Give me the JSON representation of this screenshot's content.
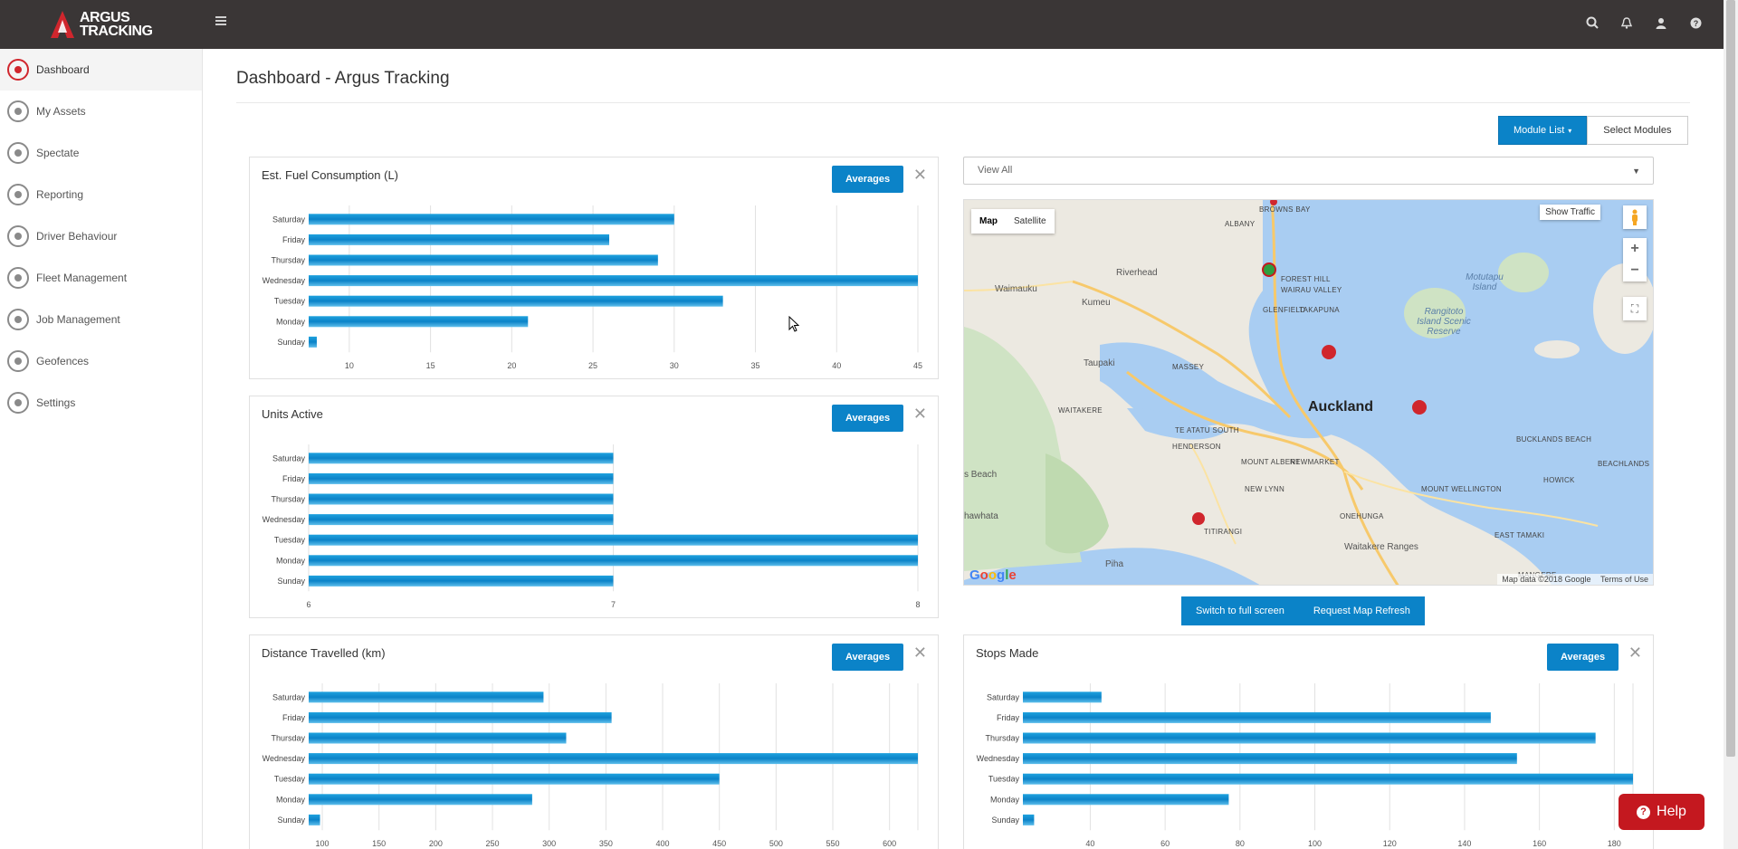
{
  "app": {
    "logo_line1": "ARGUS",
    "logo_line2": "TRACKING",
    "title": "Dashboard - Argus Tracking"
  },
  "topbar_icons": [
    "search-icon",
    "bell-icon",
    "user-icon",
    "help-icon"
  ],
  "sidebar": {
    "items": [
      {
        "label": "Dashboard",
        "icon": "dashboard-icon",
        "active": true
      },
      {
        "label": "My Assets",
        "icon": "assets-icon"
      },
      {
        "label": "Spectate",
        "icon": "map-pin-icon"
      },
      {
        "label": "Reporting",
        "icon": "reporting-icon"
      },
      {
        "label": "Driver Behaviour",
        "icon": "driver-icon"
      },
      {
        "label": "Fleet Management",
        "icon": "fleet-icon"
      },
      {
        "label": "Job Management",
        "icon": "briefcase-icon"
      },
      {
        "label": "Geofences",
        "icon": "geofence-icon"
      },
      {
        "label": "Settings",
        "icon": "gear-icon"
      }
    ]
  },
  "toolbar": {
    "module_list": "Module List",
    "select_modules": "Select Modules"
  },
  "panels": {
    "averages_label": "Averages",
    "close_glyph": "✕"
  },
  "map": {
    "filter_value": "View All",
    "type_map": "Map",
    "type_satellite": "Satellite",
    "show_traffic": "Show Traffic",
    "attribution": "Map data ©2018 Google",
    "terms": "Terms of Use",
    "labels": [
      {
        "t": "Auckland",
        "cls": "big"
      },
      {
        "t": "Riverhead"
      },
      {
        "t": "Waimauku"
      },
      {
        "t": "Kumeu"
      },
      {
        "t": "Taupaki"
      },
      {
        "t": "ALBANY",
        "cls": "caps"
      },
      {
        "t": "BROWNS BAY",
        "cls": "caps"
      },
      {
        "t": "FOREST HILL",
        "cls": "caps"
      },
      {
        "t": "WAIRAU VALLEY",
        "cls": "caps"
      },
      {
        "t": "GLENFIELD",
        "cls": "caps"
      },
      {
        "t": "TAKAPUNA",
        "cls": "caps"
      },
      {
        "t": "Motutapu Island",
        "cls": "water"
      },
      {
        "t": "Rangitoto Island Scenic Reserve",
        "cls": "water"
      },
      {
        "t": "MASSEY",
        "cls": "caps"
      },
      {
        "t": "WAITAKERE",
        "cls": "caps"
      },
      {
        "t": "TE ATATU SOUTH",
        "cls": "caps"
      },
      {
        "t": "HENDERSON",
        "cls": "caps"
      },
      {
        "t": "MOUNT ALBERT",
        "cls": "caps"
      },
      {
        "t": "NEWMARKET",
        "cls": "caps"
      },
      {
        "t": "NEW LYNN",
        "cls": "caps"
      },
      {
        "t": "ONEHUNGA",
        "cls": "caps"
      },
      {
        "t": "MOUNT WELLINGTON",
        "cls": "caps"
      },
      {
        "t": "EAST TAMAKI",
        "cls": "caps"
      },
      {
        "t": "TITIRANGI",
        "cls": "caps"
      },
      {
        "t": "BUCKLANDS BEACH",
        "cls": "caps"
      },
      {
        "t": "HOWICK",
        "cls": "caps"
      },
      {
        "t": "BEACHLANDS",
        "cls": "caps"
      },
      {
        "t": "MANGERE",
        "cls": "caps"
      },
      {
        "t": "Waitakere Ranges"
      },
      {
        "t": "Piha"
      },
      {
        "t": "s Beach"
      },
      {
        "t": "hawhata"
      }
    ]
  },
  "map_actions": {
    "fullscreen": "Switch to full screen",
    "refresh": "Request Map Refresh"
  },
  "help": {
    "label": "Help",
    "glyph": "?"
  },
  "chart_data": [
    {
      "id": "fuel",
      "type": "bar",
      "orientation": "horizontal",
      "title": "Est. Fuel Consumption (L)",
      "categories": [
        "Saturday",
        "Friday",
        "Thursday",
        "Wednesday",
        "Tuesday",
        "Monday",
        "Sunday"
      ],
      "values": [
        30,
        26,
        29,
        45,
        33,
        21,
        8
      ],
      "xlim": [
        7.5,
        45
      ],
      "xticks": [
        10,
        15,
        20,
        25,
        30,
        35,
        40,
        45
      ],
      "grid": true
    },
    {
      "id": "units",
      "type": "bar",
      "orientation": "horizontal",
      "title": "Units Active",
      "categories": [
        "Saturday",
        "Friday",
        "Thursday",
        "Wednesday",
        "Tuesday",
        "Monday",
        "Sunday"
      ],
      "values": [
        7,
        7,
        7,
        7,
        8,
        8,
        7
      ],
      "xlim": [
        6,
        8
      ],
      "xticks": [
        6,
        7,
        8
      ],
      "grid": true
    },
    {
      "id": "distance",
      "type": "bar",
      "orientation": "horizontal",
      "title": "Distance Travelled (km)",
      "categories": [
        "Saturday",
        "Friday",
        "Thursday",
        "Wednesday",
        "Tuesday",
        "Monday",
        "Sunday"
      ],
      "values": [
        295,
        355,
        315,
        625,
        450,
        285,
        98
      ],
      "xlim": [
        88,
        625
      ],
      "xticks": [
        100,
        150,
        200,
        250,
        300,
        350,
        400,
        450,
        500,
        550,
        600
      ],
      "grid": true
    },
    {
      "id": "stops",
      "type": "bar",
      "orientation": "horizontal",
      "title": "Stops Made",
      "categories": [
        "Saturday",
        "Friday",
        "Thursday",
        "Wednesday",
        "Tuesday",
        "Monday",
        "Sunday"
      ],
      "values": [
        43,
        147,
        175,
        154,
        185,
        77,
        25
      ],
      "xlim": [
        22,
        185
      ],
      "xticks": [
        40,
        60,
        80,
        100,
        120,
        140,
        160,
        180
      ],
      "grid": true
    }
  ]
}
